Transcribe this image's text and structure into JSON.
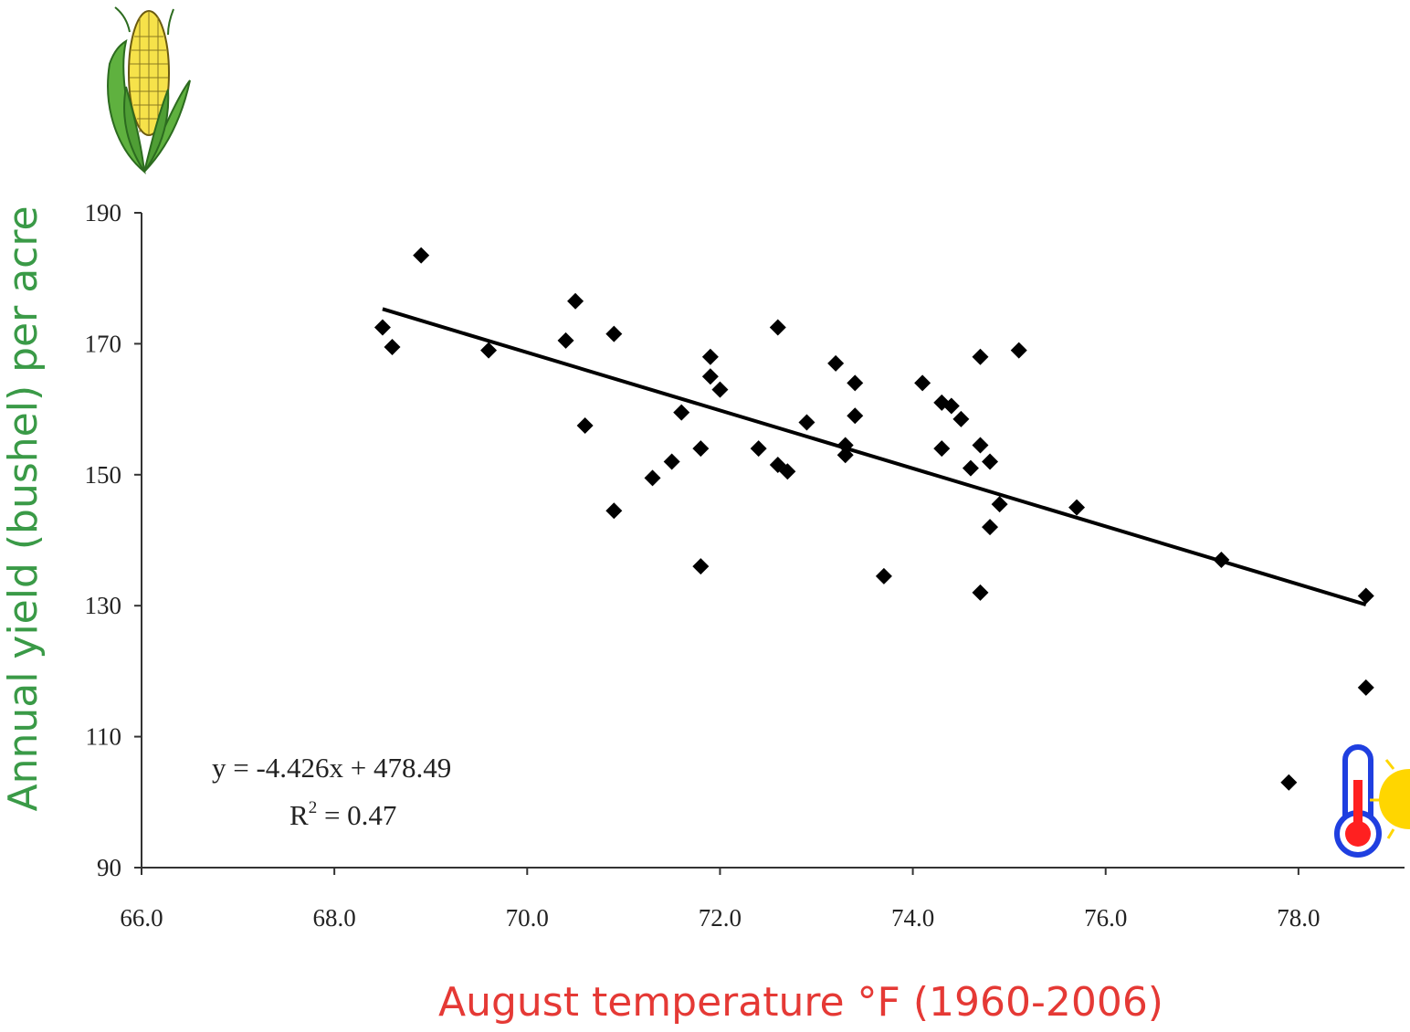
{
  "colors": {
    "xlabel": "#e53935",
    "ylabel": "#3a9a47",
    "points": "#000000",
    "trendline": "#000000"
  },
  "icons": [
    "corn-cob-icon",
    "thermometer-icon",
    "sun-icon"
  ],
  "annotation": {
    "equation": "y = -4.426x + 478.49",
    "r_squared_prefix": "R",
    "r_squared_exp": "2",
    "r_squared_value": " = 0.47"
  },
  "chart_data": {
    "type": "scatter",
    "title": "",
    "xlabel": "August temperature °F (1960-2006)",
    "ylabel": "Annual yield (bushel) per acre",
    "xlim": [
      66,
      79.1
    ],
    "ylim": [
      90,
      190
    ],
    "xticks": [
      "66.0",
      "68.0",
      "70.0",
      "72.0",
      "74.0",
      "76.0",
      "78.0"
    ],
    "yticks": [
      "90",
      "110",
      "130",
      "150",
      "170",
      "190"
    ],
    "legend": "none",
    "grid": false,
    "trendline": {
      "slope": -4.426,
      "intercept": 478.49,
      "x_range": [
        68.5,
        78.7
      ]
    },
    "points": [
      [
        68.5,
        172.5
      ],
      [
        68.6,
        169.5
      ],
      [
        68.9,
        183.5
      ],
      [
        69.6,
        169.0
      ],
      [
        70.4,
        170.5
      ],
      [
        70.5,
        176.5
      ],
      [
        70.6,
        157.5
      ],
      [
        70.9,
        171.5
      ],
      [
        70.9,
        144.5
      ],
      [
        71.3,
        149.5
      ],
      [
        71.5,
        152.0
      ],
      [
        71.6,
        159.5
      ],
      [
        71.8,
        154.0
      ],
      [
        71.8,
        136.0
      ],
      [
        71.9,
        168.0
      ],
      [
        71.9,
        165.0
      ],
      [
        72.0,
        163.0
      ],
      [
        72.4,
        154.0
      ],
      [
        72.6,
        172.5
      ],
      [
        72.6,
        151.5
      ],
      [
        72.7,
        150.5
      ],
      [
        72.9,
        158.0
      ],
      [
        73.2,
        167.0
      ],
      [
        73.3,
        154.5
      ],
      [
        73.3,
        153.0
      ],
      [
        73.4,
        164.0
      ],
      [
        73.4,
        159.0
      ],
      [
        73.7,
        134.5
      ],
      [
        74.1,
        164.0
      ],
      [
        74.3,
        161.0
      ],
      [
        74.3,
        154.0
      ],
      [
        74.4,
        160.5
      ],
      [
        74.5,
        158.5
      ],
      [
        74.6,
        151.0
      ],
      [
        74.7,
        168.0
      ],
      [
        74.7,
        154.5
      ],
      [
        74.7,
        132.0
      ],
      [
        74.8,
        152.0
      ],
      [
        74.8,
        142.0
      ],
      [
        74.9,
        145.5
      ],
      [
        75.1,
        169.0
      ],
      [
        75.7,
        145.0
      ],
      [
        77.2,
        137.0
      ],
      [
        77.9,
        103.0
      ],
      [
        78.7,
        131.5
      ],
      [
        78.7,
        117.5
      ]
    ]
  }
}
